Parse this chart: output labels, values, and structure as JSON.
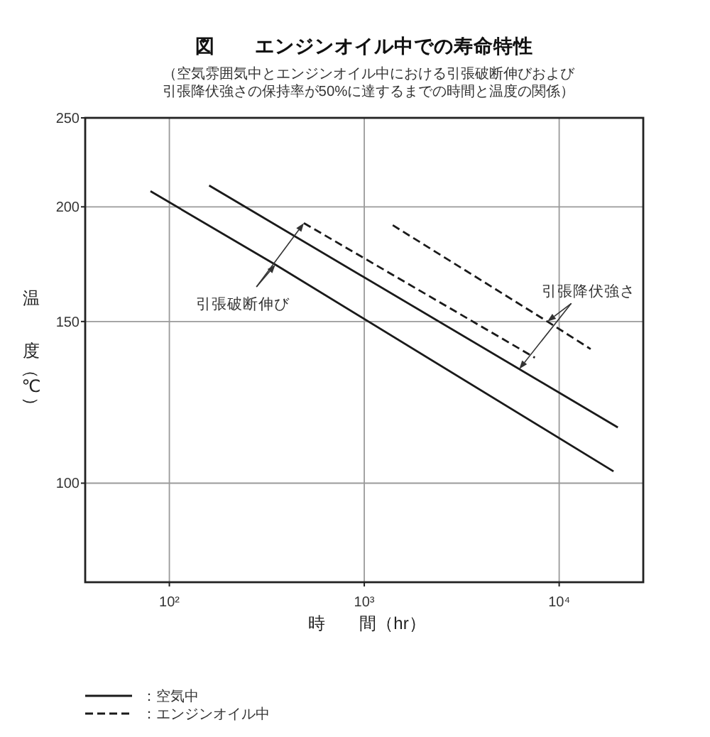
{
  "chart_data": {
    "type": "line",
    "title": "図　　エンジンオイル中での寿命特性",
    "subtitle": "（空気雰囲気中とエンジンオイル中における引張破断伸びおよび引張降伏強さの保持率が50%に達するまでの時間と温度の関係）",
    "xlabel": "時　　間（hr）",
    "ylabel": "温度（℃）",
    "log": "xy",
    "xlim": [
      37,
      27000
    ],
    "xticks": [
      {
        "value": 100,
        "label": "10²"
      },
      {
        "value": 1000,
        "label": "10³"
      },
      {
        "value": 10000,
        "label": "10⁴"
      }
    ],
    "ylim": [
      78,
      250
    ],
    "yticks": [
      100,
      150,
      200,
      250
    ],
    "grid": true,
    "legend": "bottom left",
    "series": [
      {
        "name": "：空気中",
        "color": "#1a1a1a",
        "line_style": "solid",
        "x": [
          80,
          350,
          19000
        ],
        "values": [
          208,
          173,
          103
        ]
      },
      {
        "color": "#1a1a1a",
        "line_style": "solid",
        "x": [
          160,
          20000
        ],
        "values": [
          211,
          115
        ]
      },
      {
        "name": "：エンジンオイル中",
        "color": "#1a1a1a",
        "line_style": "dashed",
        "x": [
          490,
          7500
        ],
        "values": [
          192,
          137
        ]
      },
      {
        "color": "#1a1a1a",
        "line_style": "dashed",
        "x": [
          1400,
          8700,
          14500
        ],
        "values": [
          191,
          150,
          140
        ]
      }
    ],
    "annotations": [
      {
        "text": "引張破断伸び",
        "x": 350,
        "y": 173
      },
      {
        "text": "引張降伏強さ",
        "x": 8700,
        "y": 150
      }
    ]
  }
}
